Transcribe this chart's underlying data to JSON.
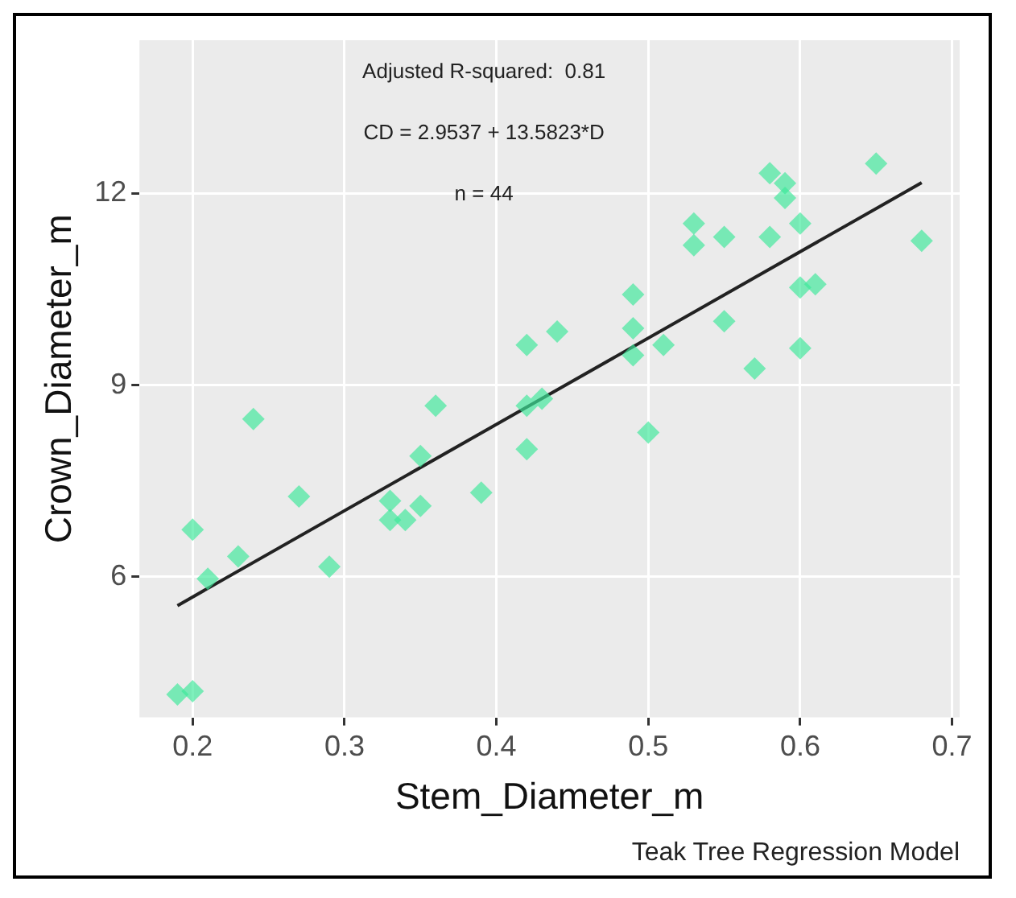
{
  "chart_data": {
    "type": "scatter",
    "xlabel": "Stem_Diameter_m",
    "ylabel": "Crown_Diameter_m",
    "annotations": [
      "Adjusted R-squared:  0.81",
      "CD = 2.9537 + 13.5823*D",
      "n = 44",
      "Teak Tree Regression Model"
    ],
    "xlim": [
      0.165,
      0.705
    ],
    "xticks": [
      0.2,
      0.3,
      0.4,
      0.5,
      0.6,
      0.7
    ],
    "ylim": [
      3.8,
      14.4
    ],
    "yticks": [
      6,
      9,
      12
    ],
    "grid": true,
    "marker": "diamond",
    "series": [
      {
        "color": "#3ee89a",
        "x": [
          0.19,
          0.2,
          0.2,
          0.21,
          0.23,
          0.24,
          0.27,
          0.29,
          0.33,
          0.33,
          0.34,
          0.35,
          0.35,
          0.36,
          0.39,
          0.42,
          0.42,
          0.42,
          0.43,
          0.44,
          0.49,
          0.49,
          0.49,
          0.5,
          0.51,
          0.53,
          0.53,
          0.55,
          0.55,
          0.57,
          0.58,
          0.58,
          0.59,
          0.59,
          0.6,
          0.6,
          0.6,
          0.61,
          0.65,
          0.68
        ],
        "values": [
          4.16,
          4.21,
          6.74,
          5.97,
          6.32,
          8.47,
          7.26,
          6.16,
          7.19,
          6.89,
          6.89,
          7.89,
          7.11,
          8.68,
          7.32,
          9.63,
          8.68,
          8.0,
          8.79,
          9.84,
          10.42,
          9.89,
          9.47,
          8.26,
          9.63,
          11.53,
          11.19,
          11.32,
          10.0,
          9.26,
          12.32,
          11.32,
          12.16,
          11.93,
          11.53,
          10.53,
          9.58,
          10.58,
          12.47,
          11.26
        ]
      },
      {
        "type": "line",
        "color": "#222222",
        "marker": "none",
        "x": [
          0.19,
          0.68
        ],
        "values": [
          5.55,
          12.17
        ]
      }
    ]
  }
}
